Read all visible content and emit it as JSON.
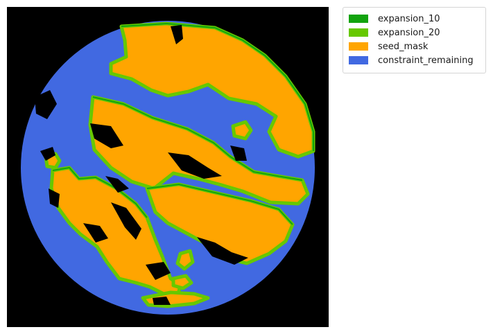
{
  "figure": {
    "legend": {
      "items": [
        {
          "label": "expansion_10",
          "color": "#12a30e"
        },
        {
          "label": "expansion_20",
          "color": "#66c800"
        },
        {
          "label": "seed_mask",
          "color": "#ffa500"
        },
        {
          "label": "constraint_remaining",
          "color": "#4169e1"
        }
      ]
    },
    "colors": {
      "background": "#000000",
      "constraint_remaining": "#4169e1",
      "seed_mask": "#ffa500",
      "expansion_10": "#12a30e",
      "expansion_20": "#66c800"
    }
  }
}
